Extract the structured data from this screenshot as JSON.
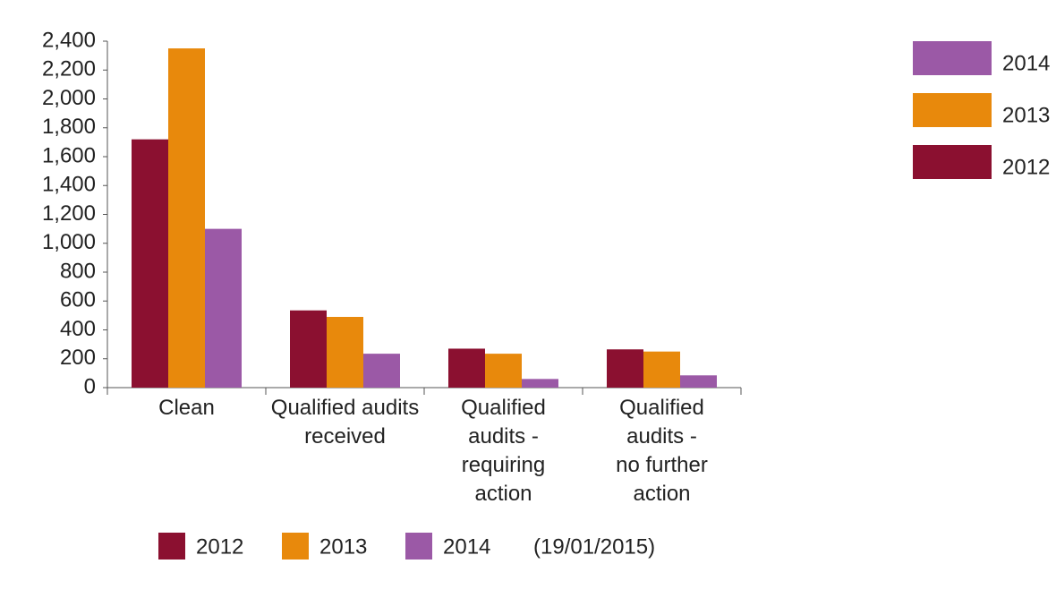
{
  "chart_data": {
    "type": "bar",
    "categories": [
      "Clean",
      "Qualified audits\nreceived",
      "Qualified\naudits -\nrequiring\naction",
      "Qualified\naudits -\nno further\naction"
    ],
    "series": [
      {
        "name": "2012",
        "color": "#8b1030",
        "values": [
          1720,
          535,
          270,
          265
        ]
      },
      {
        "name": "2013",
        "color": "#e8890c",
        "values": [
          2350,
          490,
          235,
          250
        ]
      },
      {
        "name": "2014",
        "color": "#9b59a6",
        "values": [
          1100,
          235,
          60,
          85
        ]
      }
    ],
    "note": "(19/01/2015)",
    "ylim": [
      0,
      2400
    ],
    "yticks": [
      0,
      200,
      400,
      600,
      800,
      {
        "value": 1000,
        "label": "1,000"
      },
      {
        "value": 1200,
        "label": "1,200"
      },
      {
        "value": 1400,
        "label": "1,400"
      },
      {
        "value": 1600,
        "label": "1,600"
      },
      {
        "value": 1800,
        "label": "1,800"
      },
      {
        "value": 2000,
        "label": "2,000"
      },
      {
        "value": 2200,
        "label": "2,200"
      },
      {
        "value": 2400,
        "label": "2,400"
      }
    ],
    "grid": false
  }
}
